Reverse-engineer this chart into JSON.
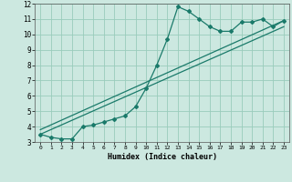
{
  "xlabel": "Humidex (Indice chaleur)",
  "xlim": [
    -0.5,
    23.5
  ],
  "ylim": [
    3,
    12
  ],
  "xticks": [
    0,
    1,
    2,
    3,
    4,
    5,
    6,
    7,
    8,
    9,
    10,
    11,
    12,
    13,
    14,
    15,
    16,
    17,
    18,
    19,
    20,
    21,
    22,
    23
  ],
  "yticks": [
    3,
    4,
    5,
    6,
    7,
    8,
    9,
    10,
    11,
    12
  ],
  "background_color": "#cce8e0",
  "grid_color": "#99ccbb",
  "line_color": "#1a7a6a",
  "series1_x": [
    0,
    1,
    2,
    3,
    4,
    5,
    6,
    7,
    8,
    9,
    10,
    11,
    12,
    13,
    14,
    15,
    16,
    17,
    18,
    19,
    20,
    21,
    22,
    23
  ],
  "series1_y": [
    3.5,
    3.3,
    3.2,
    3.2,
    4.0,
    4.1,
    4.3,
    4.5,
    4.7,
    5.3,
    6.5,
    8.0,
    9.7,
    11.8,
    11.5,
    11.0,
    10.5,
    10.2,
    10.2,
    10.8,
    10.8,
    11.0,
    10.5,
    10.9
  ],
  "line1_x": [
    0,
    23
  ],
  "line1_y": [
    3.5,
    10.5
  ],
  "line2_x": [
    0,
    23
  ],
  "line2_y": [
    3.8,
    10.9
  ]
}
